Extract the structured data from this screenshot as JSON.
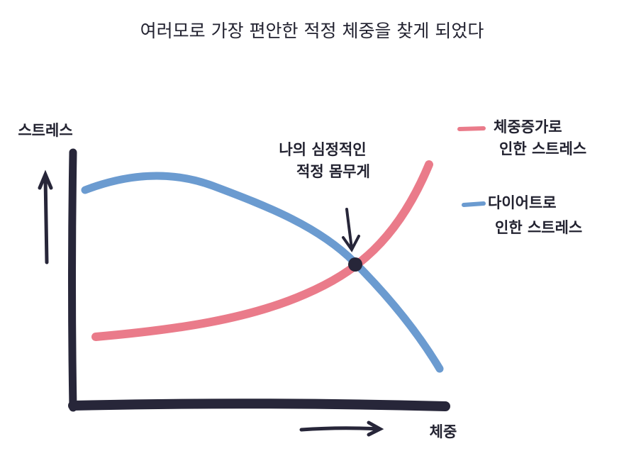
{
  "title": "여러모로 가장 편안한 적정 체중을 찾게 되었다",
  "y_axis_label": "스트레스",
  "x_axis_label": "체중",
  "annotation": {
    "lines": [
      "나의 심정적인",
      "적정 몸무게"
    ]
  },
  "legend": [
    {
      "lines": [
        "체중증가로",
        "인한 스트레스"
      ]
    },
    {
      "lines": [
        "다이어트로",
        "인한 스트레스"
      ]
    }
  ]
}
